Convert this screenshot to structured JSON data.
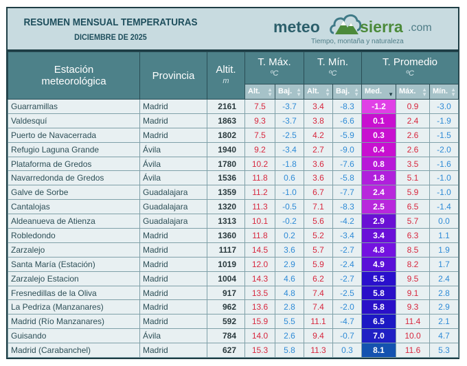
{
  "header": {
    "title": "RESUMEN MENSUAL TEMPERATURAS",
    "subtitle": "DICIEMBRE DE 2025"
  },
  "logo": {
    "meteo": "meteo",
    "sierra": "sierra",
    "com": ".com",
    "tagline": "Tiempo, montaña y naturaleza"
  },
  "columns": {
    "station": "Estación meteorológica",
    "province": "Provincia",
    "altitude": "Altit.",
    "altitude_unit": "m",
    "tmax": "T. Máx.",
    "tmin": "T. Mín.",
    "tavg": "T. Promedio",
    "unit": "ºC",
    "sub": [
      "Alt.",
      "Baj.",
      "Alt.",
      "Baj.",
      "Med.",
      "Máx.",
      "Mín."
    ],
    "sorted_by": "Med.",
    "sort_direction": "ascending"
  },
  "rows": [
    [
      "Guarramillas",
      "Madrid",
      "2161",
      "7.5",
      "-3.7",
      "3.4",
      "-8.3",
      "-1.2",
      "0.9",
      "-3.0"
    ],
    [
      "Valdesquí",
      "Madrid",
      "1863",
      "9.3",
      "-3.7",
      "3.8",
      "-6.6",
      "0.1",
      "2.4",
      "-1.9"
    ],
    [
      "Puerto de Navacerrada",
      "Madrid",
      "1802",
      "7.5",
      "-2.5",
      "4.2",
      "-5.9",
      "0.3",
      "2.6",
      "-1.5"
    ],
    [
      "Refugio Laguna Grande",
      "Ávila",
      "1940",
      "9.2",
      "-3.4",
      "2.7",
      "-9.0",
      "0.4",
      "2.6",
      "-2.0"
    ],
    [
      "Plataforma de Gredos",
      "Ávila",
      "1780",
      "10.2",
      "-1.8",
      "3.6",
      "-7.6",
      "0.8",
      "3.5",
      "-1.6"
    ],
    [
      "Navarredonda de Gredos",
      "Ávila",
      "1536",
      "11.8",
      "0.6",
      "3.6",
      "-5.8",
      "1.8",
      "5.1",
      "-1.0"
    ],
    [
      "Galve de Sorbe",
      "Guadalajara",
      "1359",
      "11.2",
      "-1.0",
      "6.7",
      "-7.7",
      "2.4",
      "5.9",
      "-1.0"
    ],
    [
      "Cantalojas",
      "Guadalajara",
      "1320",
      "11.3",
      "-0.5",
      "7.1",
      "-8.3",
      "2.5",
      "6.5",
      "-1.4"
    ],
    [
      "Aldeanueva de Atienza",
      "Guadalajara",
      "1313",
      "10.1",
      "-0.2",
      "5.6",
      "-4.2",
      "2.9",
      "5.7",
      "0.0"
    ],
    [
      "Robledondo",
      "Madrid",
      "1360",
      "11.8",
      "0.2",
      "5.2",
      "-3.4",
      "3.4",
      "6.3",
      "1.1"
    ],
    [
      "Zarzalejo",
      "Madrid",
      "1117",
      "14.5",
      "3.6",
      "5.7",
      "-2.7",
      "4.8",
      "8.5",
      "1.9"
    ],
    [
      "Santa María (Estación)",
      "Madrid",
      "1019",
      "12.0",
      "2.9",
      "5.9",
      "-2.4",
      "4.9",
      "8.2",
      "1.7"
    ],
    [
      "Zarzalejo Estacion",
      "Madrid",
      "1004",
      "14.3",
      "4.6",
      "6.2",
      "-2.7",
      "5.5",
      "9.5",
      "2.4"
    ],
    [
      "Fresnedillas de la Oliva",
      "Madrid",
      "917",
      "13.5",
      "4.8",
      "7.4",
      "-2.5",
      "5.8",
      "9.1",
      "2.8"
    ],
    [
      "La Pedriza (Manzanares)",
      "Madrid",
      "962",
      "13.6",
      "2.8",
      "7.4",
      "-2.0",
      "5.8",
      "9.3",
      "2.9"
    ],
    [
      "Madrid (Río Manzanares)",
      "Madrid",
      "592",
      "15.9",
      "5.5",
      "11.1",
      "-4.7",
      "6.5",
      "11.4",
      "2.1"
    ],
    [
      "Guisando",
      "Ávila",
      "784",
      "14.0",
      "2.6",
      "9.4",
      "-0.7",
      "7.0",
      "10.0",
      "4.7"
    ],
    [
      "Madrid (Carabanchel)",
      "Madrid",
      "627",
      "15.3",
      "5.8",
      "11.3",
      "0.3",
      "8.1",
      "11.6",
      "5.3"
    ]
  ],
  "avg_colors": [
    "#e040e6",
    "#c810d0",
    "#c810d0",
    "#c810d0",
    "#b818d8",
    "#b020dc",
    "#b828dc",
    "#b828dc",
    "#6a10d4",
    "#6a10d8",
    "#7412e0",
    "#5a10d8",
    "#2a10cc",
    "#2a10c8",
    "#2a10c8",
    "#1c18c4",
    "#2020c4",
    "#1452b0"
  ],
  "colors": {
    "warm": "#d7263d",
    "cold": "#2d8ad6",
    "header": "#4d8189"
  }
}
